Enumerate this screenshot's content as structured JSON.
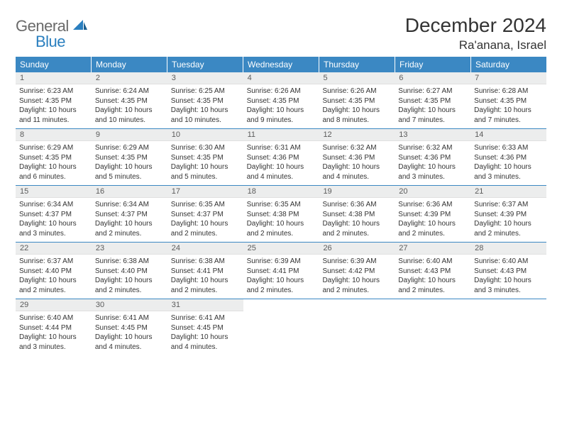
{
  "logo": {
    "text1": "General",
    "text2": "Blue"
  },
  "title": "December 2024",
  "location": "Ra'anana, Israel",
  "colors": {
    "header_bg": "#3b88c3",
    "header_text": "#ffffff",
    "daynum_bg": "#eceded",
    "text": "#333333",
    "rule": "#3b88c3",
    "logo_gray": "#6a6a6a",
    "logo_blue": "#2a7fbf"
  },
  "weekdays": [
    "Sunday",
    "Monday",
    "Tuesday",
    "Wednesday",
    "Thursday",
    "Friday",
    "Saturday"
  ],
  "days": [
    {
      "n": 1,
      "sr": "6:23 AM",
      "ss": "4:35 PM",
      "dl": "10 hours and 11 minutes."
    },
    {
      "n": 2,
      "sr": "6:24 AM",
      "ss": "4:35 PM",
      "dl": "10 hours and 10 minutes."
    },
    {
      "n": 3,
      "sr": "6:25 AM",
      "ss": "4:35 PM",
      "dl": "10 hours and 10 minutes."
    },
    {
      "n": 4,
      "sr": "6:26 AM",
      "ss": "4:35 PM",
      "dl": "10 hours and 9 minutes."
    },
    {
      "n": 5,
      "sr": "6:26 AM",
      "ss": "4:35 PM",
      "dl": "10 hours and 8 minutes."
    },
    {
      "n": 6,
      "sr": "6:27 AM",
      "ss": "4:35 PM",
      "dl": "10 hours and 7 minutes."
    },
    {
      "n": 7,
      "sr": "6:28 AM",
      "ss": "4:35 PM",
      "dl": "10 hours and 7 minutes."
    },
    {
      "n": 8,
      "sr": "6:29 AM",
      "ss": "4:35 PM",
      "dl": "10 hours and 6 minutes."
    },
    {
      "n": 9,
      "sr": "6:29 AM",
      "ss": "4:35 PM",
      "dl": "10 hours and 5 minutes."
    },
    {
      "n": 10,
      "sr": "6:30 AM",
      "ss": "4:35 PM",
      "dl": "10 hours and 5 minutes."
    },
    {
      "n": 11,
      "sr": "6:31 AM",
      "ss": "4:36 PM",
      "dl": "10 hours and 4 minutes."
    },
    {
      "n": 12,
      "sr": "6:32 AM",
      "ss": "4:36 PM",
      "dl": "10 hours and 4 minutes."
    },
    {
      "n": 13,
      "sr": "6:32 AM",
      "ss": "4:36 PM",
      "dl": "10 hours and 3 minutes."
    },
    {
      "n": 14,
      "sr": "6:33 AM",
      "ss": "4:36 PM",
      "dl": "10 hours and 3 minutes."
    },
    {
      "n": 15,
      "sr": "6:34 AM",
      "ss": "4:37 PM",
      "dl": "10 hours and 3 minutes."
    },
    {
      "n": 16,
      "sr": "6:34 AM",
      "ss": "4:37 PM",
      "dl": "10 hours and 2 minutes."
    },
    {
      "n": 17,
      "sr": "6:35 AM",
      "ss": "4:37 PM",
      "dl": "10 hours and 2 minutes."
    },
    {
      "n": 18,
      "sr": "6:35 AM",
      "ss": "4:38 PM",
      "dl": "10 hours and 2 minutes."
    },
    {
      "n": 19,
      "sr": "6:36 AM",
      "ss": "4:38 PM",
      "dl": "10 hours and 2 minutes."
    },
    {
      "n": 20,
      "sr": "6:36 AM",
      "ss": "4:39 PM",
      "dl": "10 hours and 2 minutes."
    },
    {
      "n": 21,
      "sr": "6:37 AM",
      "ss": "4:39 PM",
      "dl": "10 hours and 2 minutes."
    },
    {
      "n": 22,
      "sr": "6:37 AM",
      "ss": "4:40 PM",
      "dl": "10 hours and 2 minutes."
    },
    {
      "n": 23,
      "sr": "6:38 AM",
      "ss": "4:40 PM",
      "dl": "10 hours and 2 minutes."
    },
    {
      "n": 24,
      "sr": "6:38 AM",
      "ss": "4:41 PM",
      "dl": "10 hours and 2 minutes."
    },
    {
      "n": 25,
      "sr": "6:39 AM",
      "ss": "4:41 PM",
      "dl": "10 hours and 2 minutes."
    },
    {
      "n": 26,
      "sr": "6:39 AM",
      "ss": "4:42 PM",
      "dl": "10 hours and 2 minutes."
    },
    {
      "n": 27,
      "sr": "6:40 AM",
      "ss": "4:43 PM",
      "dl": "10 hours and 2 minutes."
    },
    {
      "n": 28,
      "sr": "6:40 AM",
      "ss": "4:43 PM",
      "dl": "10 hours and 3 minutes."
    },
    {
      "n": 29,
      "sr": "6:40 AM",
      "ss": "4:44 PM",
      "dl": "10 hours and 3 minutes."
    },
    {
      "n": 30,
      "sr": "6:41 AM",
      "ss": "4:45 PM",
      "dl": "10 hours and 4 minutes."
    },
    {
      "n": 31,
      "sr": "6:41 AM",
      "ss": "4:45 PM",
      "dl": "10 hours and 4 minutes."
    }
  ],
  "labels": {
    "sunrise": "Sunrise:",
    "sunset": "Sunset:",
    "daylight": "Daylight:"
  },
  "start_weekday": 0,
  "total_cells": 35
}
